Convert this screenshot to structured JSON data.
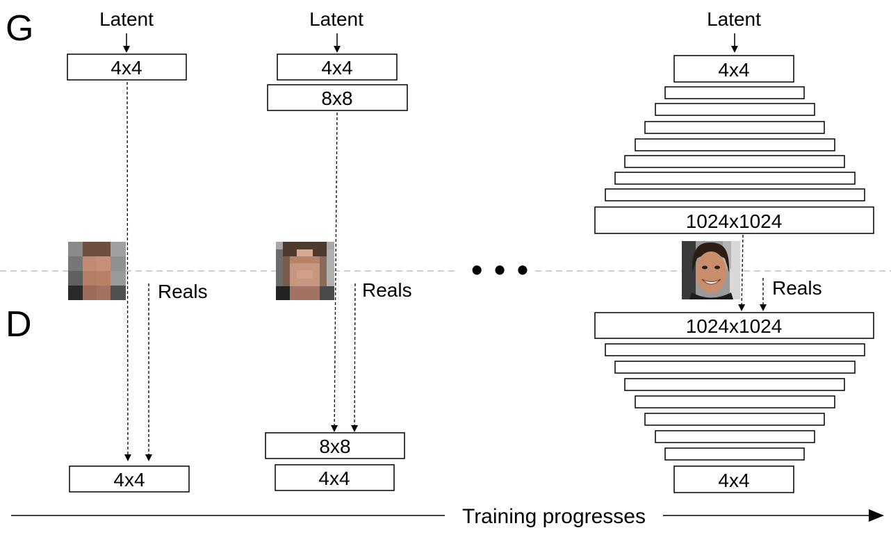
{
  "generator_label": "G",
  "discriminator_label": "D",
  "latent_label": "Latent",
  "reals_label": "Reals",
  "ellipsis": "• • •",
  "axis_label": "Training progresses",
  "stages": [
    {
      "generator_blocks": [
        "4x4"
      ],
      "discriminator_blocks": [
        "4x4"
      ],
      "sample_image": "pixelated-face-4x4"
    },
    {
      "generator_blocks": [
        "4x4",
        "8x8"
      ],
      "discriminator_blocks": [
        "8x8",
        "4x4"
      ],
      "sample_image": "pixelated-face-8x8"
    },
    {
      "generator_blocks": [
        "4x4",
        "",
        "",
        "",
        "",
        "",
        "",
        "",
        "",
        "1024x1024"
      ],
      "discriminator_blocks": [
        "1024x1024",
        "",
        "",
        "",
        "",
        "",
        "",
        "",
        "",
        "4x4"
      ],
      "sample_image": "face-photo-1024x1024"
    }
  ],
  "colors": {
    "skin": "#c08a6e",
    "hair": "#5a4232",
    "background_grey": "#a8a8a8",
    "divider": "#bfbfbf"
  }
}
